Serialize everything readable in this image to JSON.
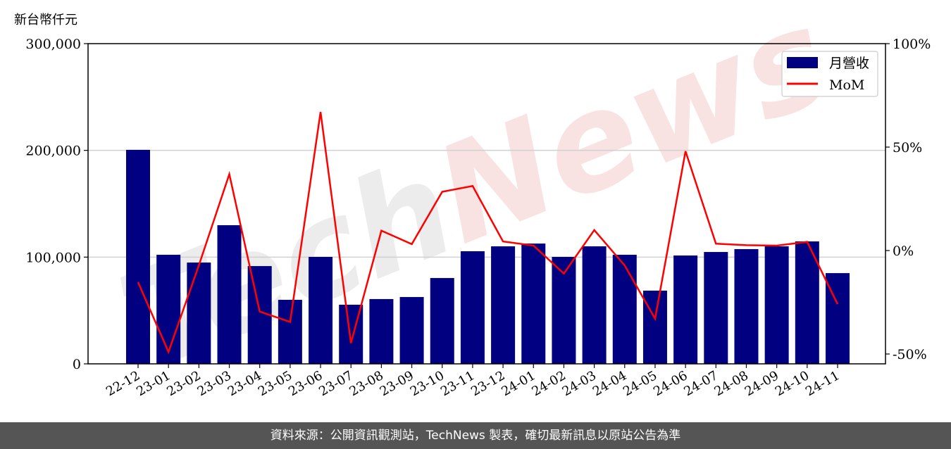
{
  "chart_data": {
    "type": "bar+line",
    "ylabel_left": "新台幣仟元",
    "categories": [
      "22-12",
      "23-01",
      "23-02",
      "23-03",
      "23-04",
      "23-05",
      "23-06",
      "23-07",
      "23-08",
      "23-09",
      "23-10",
      "23-11",
      "23-12",
      "24-01",
      "24-02",
      "24-03",
      "24-04",
      "24-05",
      "24-06",
      "24-07",
      "24-08",
      "24-09",
      "24-10",
      "24-11"
    ],
    "series": [
      {
        "name": "月營收",
        "type": "bar",
        "axis": "left",
        "color": "#000080",
        "values": [
          200500,
          102200,
          94900,
          129900,
          91600,
          60000,
          100200,
          55400,
          60700,
          62600,
          80400,
          105500,
          110100,
          112700,
          100200,
          110100,
          102200,
          68600,
          101500,
          104800,
          107500,
          110100,
          114700,
          85000
        ]
      },
      {
        "name": "MoM",
        "type": "line",
        "axis": "right",
        "color": "#ff0000",
        "values": [
          -15.3,
          -49.0,
          -7.1,
          36.9,
          -29.5,
          -34.5,
          67.0,
          -44.7,
          9.6,
          3.1,
          28.4,
          31.2,
          4.4,
          2.4,
          -11.1,
          9.9,
          -7.2,
          -32.9,
          48.0,
          3.3,
          2.6,
          2.4,
          4.2,
          -25.9
        ]
      }
    ],
    "ylim_left": [
      0,
      300000
    ],
    "yticks_left": [
      "0",
      "100,000",
      "200,000",
      "300,000"
    ],
    "ylim_right": [
      -55,
      100
    ],
    "yticks_right": [
      "-50%",
      "0%",
      "50%",
      "100%"
    ],
    "grid": "horizontal",
    "legend": "top-right"
  },
  "watermark": "TechNews",
  "footer": "資料來源：公開資訊觀測站，TechNews 製表，確切最新訊息以原站公告為準"
}
